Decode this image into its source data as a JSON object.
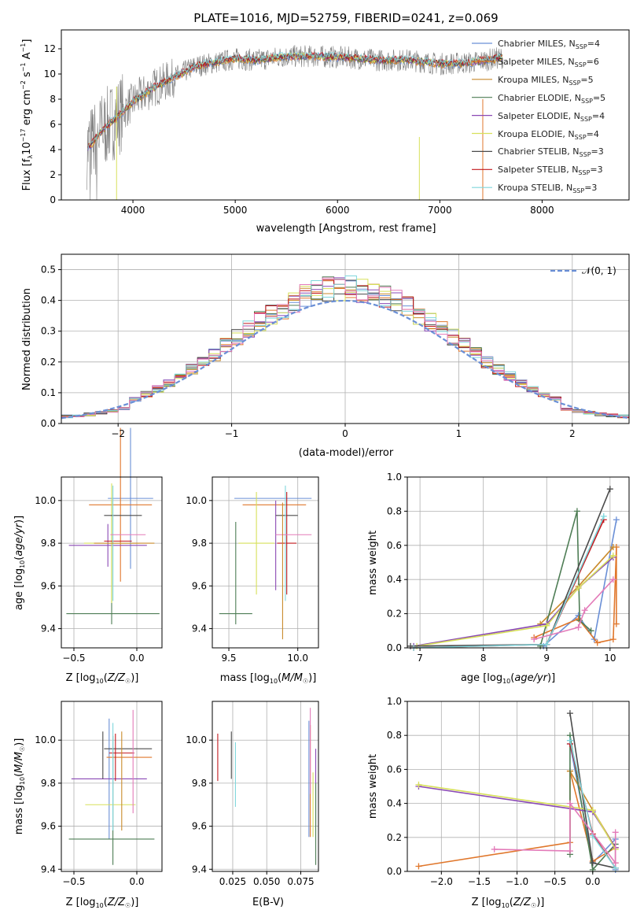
{
  "figure_title": "PLATE=1016, MJD=52759, FIBERID=0241, z=0.069",
  "colors": {
    "grid": "#b0b0b0",
    "data_spectrum": "#7f7f7f",
    "normal_curve": "#6a8fd6",
    "series": [
      "#6a8fd6",
      "#e0772c",
      "#c98a2b",
      "#4e7d55",
      "#8a49b5",
      "#d7e05a",
      "#4b4b4b",
      "#c2181d",
      "#7fd6dc",
      "#e37bb9"
    ]
  },
  "chart_data": [
    {
      "id": "spectrum",
      "type": "line",
      "title": "PLATE=1016, MJD=52759, FIBERID=0241, z=0.069",
      "xlabel": "wavelength [Angstrom, rest frame]",
      "ylabel": "Flux [f_λ 10^-17 erg cm^-2 s^-1 A^-1]",
      "ylabel_parts": {
        "a": "Flux [f",
        "b": "λ",
        "c": "10",
        "d": "−17",
        "e": " erg cm",
        "f": "−2",
        "g": " s",
        "h": "−1",
        "i": " A",
        "j": "−1",
        "k": "]"
      },
      "xlim": [
        3300,
        8850
      ],
      "ylim": [
        0,
        13.5
      ],
      "xticks": [
        4000,
        5000,
        6000,
        7000,
        8000
      ],
      "yticks": [
        0,
        2,
        4,
        6,
        8,
        10,
        12
      ],
      "grid": false,
      "legend_position": "upper right",
      "legend": [
        {
          "pre": "Chabrier MILES, N",
          "sub": "SSP",
          "post": "=4"
        },
        {
          "pre": "Salpeter MILES, N",
          "sub": "SSP",
          "post": "=6"
        },
        {
          "pre": "Kroupa MILES, N",
          "sub": "SSP",
          "post": "=5"
        },
        {
          "pre": "Chabrier ELODIE, N",
          "sub": "SSP",
          "post": "=5"
        },
        {
          "pre": "Salpeter ELODIE, N",
          "sub": "SSP",
          "post": "=4"
        },
        {
          "pre": "Kroupa ELODIE, N",
          "sub": "SSP",
          "post": "=4"
        },
        {
          "pre": "Chabrier STELIB, N",
          "sub": "SSP",
          "post": "=3"
        },
        {
          "pre": "Salpeter STELIB, N",
          "sub": "SSP",
          "post": "=3"
        },
        {
          "pre": "Kroupa STELIB, N",
          "sub": "SSP",
          "post": "=3"
        }
      ],
      "envelope_x": [
        3550,
        3700,
        3850,
        4000,
        4200,
        4400,
        4600,
        4800,
        5000,
        5200,
        5500,
        5800,
        6100,
        6400,
        6700,
        7000,
        7300,
        7600
      ],
      "envelope_y": [
        4.0,
        5.5,
        6.6,
        7.8,
        8.9,
        9.7,
        10.6,
        10.9,
        11.2,
        11.1,
        11.4,
        11.4,
        11.3,
        11.1,
        11.1,
        10.8,
        10.9,
        11.3
      ]
    },
    {
      "id": "residuals",
      "type": "step-histogram",
      "xlabel": "(data-model)/error",
      "ylabel": "Normed distribution",
      "xlim": [
        -2.5,
        2.5
      ],
      "ylim": [
        0,
        0.55
      ],
      "xticks": [
        -2,
        -1,
        0,
        1,
        2
      ],
      "xtick_labels": [
        "−2",
        "−1",
        "0",
        "1",
        "2"
      ],
      "yticks": [
        0.0,
        0.1,
        0.2,
        0.3,
        0.4,
        0.5
      ],
      "ytick_labels": [
        "0.0",
        "0.1",
        "0.2",
        "0.3",
        "0.4",
        "0.5"
      ],
      "grid": true,
      "legend_label": "𝒩(0, 1)",
      "legend_position": "upper right",
      "bin_width": 0.1,
      "normal_curve": {
        "mean": 0,
        "sigma": 1
      }
    },
    {
      "id": "age-vs-Z",
      "type": "errorbar",
      "xlabel": "Z [log10(Z/Z☉)]",
      "ylabel": "age [log10(age/yr)]",
      "xlim": [
        -0.6,
        0.2
      ],
      "ylim": [
        9.31,
        10.11
      ],
      "xticks": [
        -0.5,
        0.0
      ],
      "xtick_labels": [
        "−0.5",
        "0.0"
      ],
      "yticks": [
        9.4,
        9.6,
        9.8,
        10.0
      ],
      "ytick_labels": [
        "9.4",
        "9.6",
        "9.8",
        "10.0"
      ],
      "grid": true,
      "points": [
        {
          "c": 0,
          "x": -0.05,
          "xerr": 0.18,
          "y": 10.01,
          "yerr": 0.33
        },
        {
          "c": 1,
          "x": -0.13,
          "xerr": 0.25,
          "y": 9.98,
          "yerr": 0.36
        },
        {
          "c": 3,
          "x": -0.19,
          "xerr": 0.37,
          "y": 9.47,
          "yerr": 0.0
        },
        {
          "c": 3,
          "x": -0.2,
          "xerr": 0.0,
          "y": 9.71,
          "yerr": 0.29
        },
        {
          "c": 4,
          "x": -0.23,
          "xerr": 0.31,
          "y": 9.79,
          "yerr": 0.1
        },
        {
          "c": 5,
          "x": -0.2,
          "xerr": 0.22,
          "y": 9.8,
          "yerr": 0.28
        },
        {
          "c": 6,
          "x": -0.11,
          "xerr": 0.15,
          "y": 9.93,
          "yerr": 0.0
        },
        {
          "c": 7,
          "x": -0.15,
          "xerr": 0.11,
          "y": 9.81,
          "yerr": 0.0
        },
        {
          "c": 8,
          "x": -0.19,
          "xerr": 0.0,
          "y": 9.8,
          "yerr": 0.27
        },
        {
          "c": 9,
          "x": -0.07,
          "xerr": 0.14,
          "y": 9.84,
          "yerr": 0.0
        },
        {
          "c": 2,
          "x": -0.1,
          "xerr": 0.24,
          "y": 9.8,
          "yerr": 0.0
        }
      ]
    },
    {
      "id": "age-vs-mass",
      "type": "errorbar",
      "xlabel": "mass [log10(M/M☉)]",
      "xlim": [
        9.38,
        10.15
      ],
      "ylim": [
        9.31,
        10.11
      ],
      "xticks": [
        9.5,
        10.0
      ],
      "xtick_labels": [
        "9.5",
        "10.0"
      ],
      "yticks": [
        9.4,
        9.6,
        9.8,
        10.0
      ],
      "ytick_labels": [
        "9.4",
        "9.6",
        "9.8",
        "10.0"
      ],
      "grid": true,
      "points": [
        {
          "c": 0,
          "x": 9.82,
          "xerr": 0.28,
          "y": 10.01,
          "yerr": 0.0
        },
        {
          "c": 1,
          "x": 9.83,
          "xerr": 0.23,
          "y": 9.98,
          "yerr": 0.0
        },
        {
          "c": 3,
          "x": 9.55,
          "xerr": 0.12,
          "y": 9.47,
          "yerr": 0.0
        },
        {
          "c": 3,
          "x": 9.55,
          "xerr": 0.0,
          "y": 9.66,
          "yerr": 0.24
        },
        {
          "c": 4,
          "x": 9.84,
          "xerr": 0.0,
          "y": 9.79,
          "yerr": 0.21
        },
        {
          "c": 5,
          "x": 9.7,
          "xerr": 0.13,
          "y": 9.8,
          "yerr": 0.24
        },
        {
          "c": 6,
          "x": 9.92,
          "xerr": 0.08,
          "y": 9.93,
          "yerr": 0.0
        },
        {
          "c": 7,
          "x": 9.92,
          "xerr": 0.07,
          "y": 9.8,
          "yerr": 0.24
        },
        {
          "c": 8,
          "x": 9.91,
          "xerr": 0.0,
          "y": 9.8,
          "yerr": 0.27
        },
        {
          "c": 9,
          "x": 9.97,
          "xerr": 0.13,
          "y": 9.84,
          "yerr": 0.0
        },
        {
          "c": 2,
          "x": 9.89,
          "xerr": 0.0,
          "y": 9.67,
          "yerr": 0.32
        }
      ]
    },
    {
      "id": "mass-weight-vs-age",
      "type": "line",
      "xlabel": "age [log10(age/yr)]",
      "ylabel": "mass weight",
      "xlim": [
        6.8,
        10.3
      ],
      "ylim": [
        0,
        1
      ],
      "xticks": [
        7,
        8,
        9,
        10
      ],
      "yticks": [
        0.0,
        0.2,
        0.4,
        0.6,
        0.8,
        1.0
      ],
      "ytick_labels": [
        "0.0",
        "0.2",
        "0.4",
        "0.6",
        "0.8",
        "1.0"
      ],
      "grid": true,
      "series": [
        {
          "c": 0,
          "x": [
            8.95,
            9.5,
            9.75,
            10.1
          ],
          "y": [
            0.01,
            0.19,
            0.05,
            0.75
          ]
        },
        {
          "c": 1,
          "x": [
            8.8,
            9.5,
            9.8,
            10.05,
            10.1,
            10.1
          ],
          "y": [
            0.06,
            0.17,
            0.03,
            0.05,
            0.59,
            0.14
          ]
        },
        {
          "c": 2,
          "x": [
            8.9,
            9.5,
            10.05
          ],
          "y": [
            0.14,
            0.36,
            0.59
          ]
        },
        {
          "c": 3,
          "x": [
            8.9,
            9.48,
            9.52,
            9.7
          ],
          "y": [
            0.01,
            0.8,
            0.16,
            0.1
          ]
        },
        {
          "c": 4,
          "x": [
            6.9,
            9.0,
            9.5,
            10.05
          ],
          "y": [
            0.01,
            0.14,
            0.35,
            0.53
          ]
        },
        {
          "c": 5,
          "x": [
            6.95,
            9.0,
            9.5,
            10.05
          ],
          "y": [
            0.01,
            0.13,
            0.35,
            0.54
          ]
        },
        {
          "c": 6,
          "x": [
            6.85,
            9.0,
            10.0
          ],
          "y": [
            0.01,
            0.02,
            0.93
          ]
        },
        {
          "c": 7,
          "x": [
            6.9,
            9.0,
            9.9
          ],
          "y": [
            0.0,
            0.02,
            0.75
          ]
        },
        {
          "c": 8,
          "x": [
            6.9,
            9.0,
            9.9
          ],
          "y": [
            0.0,
            0.02,
            0.77
          ]
        },
        {
          "c": 9,
          "x": [
            8.8,
            9.5,
            9.6,
            10.05
          ],
          "y": [
            0.05,
            0.12,
            0.22,
            0.4
          ]
        }
      ]
    },
    {
      "id": "mass-vs-Z",
      "type": "errorbar",
      "xlabel": "Z [log10(Z/Z☉)]",
      "ylabel": "mass [log10(M/M☉)]",
      "xlim": [
        -0.6,
        0.2
      ],
      "ylim": [
        9.39,
        10.18
      ],
      "xticks": [
        -0.5,
        0.0
      ],
      "xtick_labels": [
        "−0.5",
        "0.0"
      ],
      "yticks": [
        9.4,
        9.6,
        9.8,
        10.0
      ],
      "ytick_labels": [
        "9.4",
        "9.6",
        "9.8",
        "10.0"
      ],
      "grid": true,
      "points": [
        {
          "c": 0,
          "x": -0.22,
          "xerr": 0.0,
          "y": 9.82,
          "yerr": 0.28
        },
        {
          "c": 1,
          "x": -0.06,
          "xerr": 0.18,
          "y": 9.92,
          "yerr": 0.0
        },
        {
          "c": 3,
          "x": -0.2,
          "xerr": 0.34,
          "y": 9.54,
          "yerr": 0.0
        },
        {
          "c": 3,
          "x": -0.19,
          "xerr": 0.0,
          "y": 9.72,
          "yerr": 0.3
        },
        {
          "c": 4,
          "x": -0.22,
          "xerr": 0.3,
          "y": 9.82,
          "yerr": 0.0
        },
        {
          "c": 5,
          "x": -0.21,
          "xerr": 0.2,
          "y": 9.7,
          "yerr": 0.0
        },
        {
          "c": 6,
          "x": -0.07,
          "xerr": 0.19,
          "y": 9.96,
          "yerr": 0.0
        },
        {
          "c": 6,
          "x": -0.27,
          "xerr": 0.0,
          "y": 9.93,
          "yerr": 0.11
        },
        {
          "c": 7,
          "x": -0.17,
          "xerr": 0.0,
          "y": 9.92,
          "yerr": 0.11
        },
        {
          "c": 7,
          "x": -0.12,
          "xerr": 0.1,
          "y": 9.94,
          "yerr": 0.0
        },
        {
          "c": 8,
          "x": -0.19,
          "xerr": 0.0,
          "y": 9.83,
          "yerr": 0.25
        },
        {
          "c": 9,
          "x": -0.03,
          "xerr": 0.0,
          "y": 9.9,
          "yerr": 0.24
        },
        {
          "c": 2,
          "x": -0.12,
          "xerr": 0.0,
          "y": 9.81,
          "yerr": 0.23
        }
      ]
    },
    {
      "id": "mass-vs-EBV",
      "type": "errorbar",
      "xlabel": "E(B-V)",
      "xlim": [
        0.01,
        0.088
      ],
      "ylim": [
        9.39,
        10.18
      ],
      "xticks": [
        0.025,
        0.05,
        0.075
      ],
      "xtick_labels": [
        "0.025",
        "0.050",
        "0.075"
      ],
      "yticks": [
        9.4,
        9.6,
        9.8,
        10.0
      ],
      "ytick_labels": [
        "9.4",
        "9.6",
        "9.8",
        "10.0"
      ],
      "grid": true,
      "points": [
        {
          "c": 7,
          "x": 0.014,
          "xerr": 0.0,
          "y": 9.92,
          "yerr": 0.11
        },
        {
          "c": 6,
          "x": 0.024,
          "xerr": 0.0,
          "y": 9.93,
          "yerr": 0.11
        },
        {
          "c": 8,
          "x": 0.027,
          "xerr": 0.0,
          "y": 9.84,
          "yerr": 0.15
        },
        {
          "c": 0,
          "x": 0.081,
          "xerr": 0.0,
          "y": 9.82,
          "yerr": 0.27
        },
        {
          "c": 1,
          "x": 0.082,
          "xerr": 0.0,
          "y": 9.81,
          "yerr": 0.26
        },
        {
          "c": 9,
          "x": 0.082,
          "xerr": 0.0,
          "y": 9.95,
          "yerr": 0.2
        },
        {
          "c": 5,
          "x": 0.084,
          "xerr": 0.0,
          "y": 9.7,
          "yerr": 0.15
        },
        {
          "c": 4,
          "x": 0.086,
          "xerr": 0.0,
          "y": 9.78,
          "yerr": 0.18
        },
        {
          "c": 3,
          "x": 0.086,
          "xerr": 0.0,
          "y": 9.61,
          "yerr": 0.19
        }
      ]
    },
    {
      "id": "mass-weight-vs-Z",
      "type": "line",
      "xlabel": "Z [log10(Z/Z☉)]",
      "ylabel": "mass weight",
      "xlim": [
        -2.45,
        0.48
      ],
      "ylim": [
        0,
        1
      ],
      "xticks": [
        -2.0,
        -1.5,
        -1.0,
        -0.5,
        0.0
      ],
      "xtick_labels": [
        "−2.0",
        "−1.5",
        "−1.0",
        "−0.5",
        "0.0"
      ],
      "yticks": [
        0.0,
        0.2,
        0.4,
        0.6,
        0.8,
        1.0
      ],
      "ytick_labels": [
        "0.0",
        "0.2",
        "0.4",
        "0.6",
        "0.8",
        "1.0"
      ],
      "grid": true,
      "series": [
        {
          "c": 0,
          "x": [
            -0.3,
            0.0,
            0.3,
            0.3
          ],
          "y": [
            0.75,
            0.05,
            0.19,
            0.01
          ]
        },
        {
          "c": 1,
          "x": [
            -2.3,
            -0.3,
            -0.3,
            0.0,
            0.3,
            0.3
          ],
          "y": [
            0.03,
            0.17,
            0.59,
            0.06,
            0.14,
            0.05
          ]
        },
        {
          "c": 2,
          "x": [
            -0.3,
            0.0,
            0.3
          ],
          "y": [
            0.59,
            0.36,
            0.14
          ]
        },
        {
          "c": 3,
          "x": [
            -0.3,
            -0.3,
            0.0,
            0.3
          ],
          "y": [
            0.1,
            0.8,
            0.01,
            0.16
          ]
        },
        {
          "c": 4,
          "x": [
            -2.3,
            0.0,
            0.3
          ],
          "y": [
            0.5,
            0.35,
            0.14
          ]
        },
        {
          "c": 5,
          "x": [
            -2.3,
            0.0,
            0.3
          ],
          "y": [
            0.51,
            0.36,
            0.13
          ]
        },
        {
          "c": 6,
          "x": [
            -0.3,
            0.0,
            0.3
          ],
          "y": [
            0.93,
            0.05,
            0.02
          ]
        },
        {
          "c": 7,
          "x": [
            -0.3,
            0.0,
            0.3
          ],
          "y": [
            0.75,
            0.22,
            0.02
          ]
        },
        {
          "c": 8,
          "x": [
            -0.3,
            0.0,
            0.3
          ],
          "y": [
            0.77,
            0.21,
            0.02
          ]
        },
        {
          "c": 9,
          "x": [
            -1.3,
            -0.3,
            -0.3,
            0.3,
            0.3
          ],
          "y": [
            0.13,
            0.12,
            0.4,
            0.05,
            0.23
          ]
        }
      ]
    }
  ]
}
